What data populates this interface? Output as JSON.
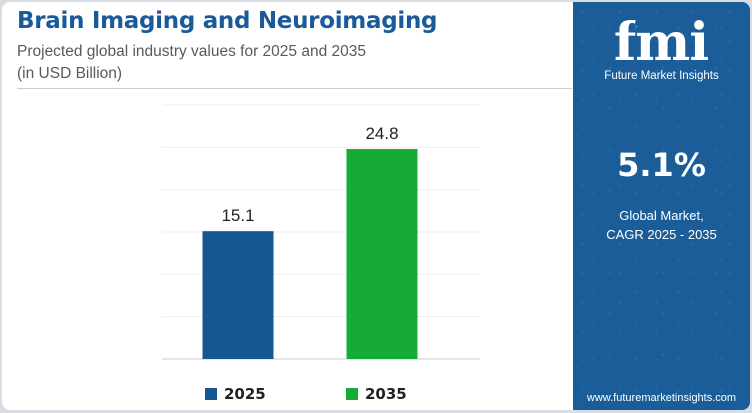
{
  "header": {
    "title": "Brain Imaging and Neuroimaging",
    "subtitle": "Projected global industry values for 2025 and 2035",
    "unit_note": "(in USD Billion)"
  },
  "chart_data": {
    "type": "bar",
    "categories": [
      "2025",
      "2035"
    ],
    "values": [
      15.1,
      24.8
    ],
    "value_labels": [
      "15.1",
      "24.8"
    ],
    "colors": [
      "#165692",
      "#16ab36"
    ],
    "ylim": [
      0,
      30
    ],
    "grid": true,
    "legend": "bottom-center",
    "legend_items": [
      {
        "label": "2025",
        "color": "#165692"
      },
      {
        "label": "2035",
        "color": "#16ab36"
      }
    ]
  },
  "sidebar": {
    "logo_letters": "fmi",
    "logo_text": "Future Market Insights",
    "cagr_value": "5.1%",
    "cagr_line1": "Global Market,",
    "cagr_line2": "CAGR 2025 - 2035",
    "url": "www.futuremarketinsights.com",
    "background_color": "#1a5d99"
  }
}
